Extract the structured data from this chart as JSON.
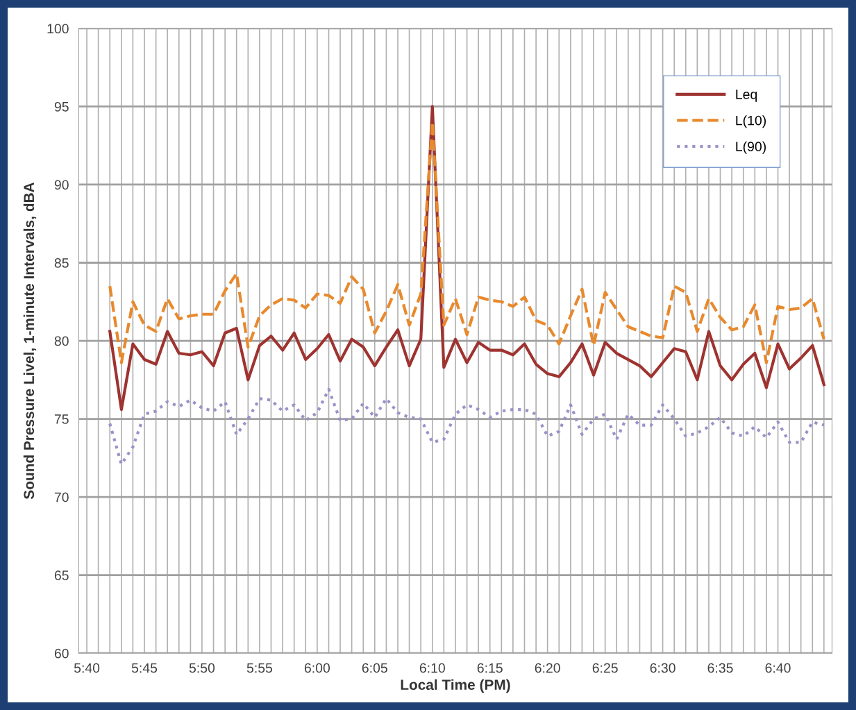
{
  "chart_data": {
    "type": "line",
    "xlabel": "Local Time (PM)",
    "ylabel": "Sound Pressure Livel, 1-minute Intervals, dBA",
    "x": [
      5.7,
      5.7167,
      5.7333,
      5.75,
      5.7667,
      5.7833,
      5.8,
      5.8167,
      5.8333,
      5.85,
      5.8667,
      5.8833,
      5.9,
      5.9167,
      5.9333,
      5.95,
      5.9667,
      5.9833,
      6.0,
      6.0167,
      6.0333,
      6.05,
      6.0667,
      6.0833,
      6.1,
      6.1167,
      6.1333,
      6.15,
      6.1667,
      6.1833,
      6.2,
      6.2167,
      6.2333,
      6.25,
      6.2667,
      6.2833,
      6.3,
      6.3167,
      6.3333,
      6.35,
      6.3667,
      6.3833,
      6.4,
      6.4167,
      6.4333,
      6.45,
      6.4667,
      6.4833,
      6.5,
      6.5167,
      6.5333,
      6.55,
      6.5667,
      6.5833,
      6.6,
      6.6167,
      6.6333,
      6.65,
      6.6667,
      6.6833,
      6.7,
      6.7167,
      6.7333
    ],
    "series": [
      {
        "name": "Leq",
        "color": "#9e3330",
        "line_style": "solid",
        "values": [
          80.6,
          75.6,
          79.8,
          78.8,
          78.5,
          80.6,
          79.2,
          79.1,
          79.3,
          78.4,
          80.5,
          80.8,
          77.5,
          79.7,
          80.3,
          79.4,
          80.5,
          78.8,
          79.5,
          80.4,
          78.7,
          80.1,
          79.6,
          78.4,
          79.6,
          80.7,
          78.4,
          80.1,
          95.0,
          78.3,
          80.1,
          78.6,
          79.9,
          79.4,
          79.4,
          79.1,
          79.8,
          78.5,
          77.9,
          77.7,
          78.6,
          79.8,
          77.8,
          79.9,
          79.2,
          78.8,
          78.4,
          77.7,
          78.6,
          79.5,
          79.3,
          77.5,
          80.6,
          78.4,
          77.5,
          78.5,
          79.2,
          77.0,
          79.8,
          78.2,
          78.9,
          79.7,
          77.2
        ]
      },
      {
        "name": "L(10)",
        "color": "#e8892d",
        "line_style": "dashed",
        "values": [
          83.5,
          78.6,
          82.5,
          81.0,
          80.6,
          82.7,
          81.4,
          81.6,
          81.7,
          81.7,
          83.2,
          84.3,
          79.6,
          81.6,
          82.3,
          82.7,
          82.6,
          82.1,
          83.0,
          82.9,
          82.4,
          84.1,
          83.3,
          80.5,
          81.9,
          83.6,
          81.0,
          83.0,
          94.0,
          81.0,
          82.7,
          80.4,
          82.8,
          82.6,
          82.5,
          82.2,
          82.8,
          81.3,
          81.0,
          79.8,
          81.6,
          83.3,
          79.7,
          83.1,
          82.0,
          80.9,
          80.6,
          80.3,
          80.2,
          83.5,
          83.1,
          80.6,
          82.7,
          81.5,
          80.7,
          80.9,
          82.3,
          78.6,
          82.2,
          82.0,
          82.1,
          82.7,
          80.1
        ]
      },
      {
        "name": "L(90)",
        "color": "#9a92c8",
        "line_style": "dotted",
        "values": [
          74.7,
          72.1,
          73.2,
          75.3,
          75.5,
          76.1,
          75.8,
          76.2,
          75.7,
          75.5,
          76.1,
          74.0,
          75.0,
          76.3,
          76.2,
          75.5,
          75.9,
          74.9,
          75.4,
          76.9,
          74.9,
          75.0,
          76.0,
          75.1,
          76.3,
          75.4,
          75.1,
          75.0,
          73.5,
          73.7,
          75.3,
          75.9,
          75.6,
          75.1,
          75.5,
          75.6,
          75.6,
          75.3,
          73.9,
          74.2,
          75.9,
          74.0,
          75.0,
          75.3,
          73.7,
          75.3,
          74.6,
          74.6,
          75.9,
          75.0,
          73.9,
          74.1,
          74.5,
          75.1,
          74.1,
          73.9,
          74.5,
          73.8,
          74.8,
          73.5,
          73.5,
          74.8,
          74.6
        ]
      }
    ],
    "xlim": [
      5.655,
      6.745
    ],
    "xticks": [
      {
        "value": 5.6667,
        "label": "5:40"
      },
      {
        "value": 5.6833,
        "label": null
      },
      {
        "value": 5.7,
        "label": null
      },
      {
        "value": 5.7167,
        "label": null
      },
      {
        "value": 5.7333,
        "label": null
      },
      {
        "value": 5.75,
        "label": "5:45"
      },
      {
        "value": 5.7667,
        "label": null
      },
      {
        "value": 5.7833,
        "label": null
      },
      {
        "value": 5.8,
        "label": null
      },
      {
        "value": 5.8167,
        "label": null
      },
      {
        "value": 5.8333,
        "label": "5:50"
      },
      {
        "value": 5.85,
        "label": null
      },
      {
        "value": 5.8667,
        "label": null
      },
      {
        "value": 5.8833,
        "label": null
      },
      {
        "value": 5.9,
        "label": null
      },
      {
        "value": 5.9167,
        "label": "5:55"
      },
      {
        "value": 5.9333,
        "label": null
      },
      {
        "value": 5.95,
        "label": null
      },
      {
        "value": 5.9667,
        "label": null
      },
      {
        "value": 5.9833,
        "label": null
      },
      {
        "value": 6.0,
        "label": "6:00"
      },
      {
        "value": 6.0167,
        "label": null
      },
      {
        "value": 6.0333,
        "label": null
      },
      {
        "value": 6.05,
        "label": null
      },
      {
        "value": 6.0667,
        "label": null
      },
      {
        "value": 6.0833,
        "label": "6:05"
      },
      {
        "value": 6.1,
        "label": null
      },
      {
        "value": 6.1167,
        "label": null
      },
      {
        "value": 6.1333,
        "label": null
      },
      {
        "value": 6.15,
        "label": null
      },
      {
        "value": 6.1667,
        "label": "6:10"
      },
      {
        "value": 6.1833,
        "label": null
      },
      {
        "value": 6.2,
        "label": null
      },
      {
        "value": 6.2167,
        "label": null
      },
      {
        "value": 6.2333,
        "label": null
      },
      {
        "value": 6.25,
        "label": "6:15"
      },
      {
        "value": 6.2667,
        "label": null
      },
      {
        "value": 6.2833,
        "label": null
      },
      {
        "value": 6.3,
        "label": null
      },
      {
        "value": 6.3167,
        "label": null
      },
      {
        "value": 6.3333,
        "label": "6:20"
      },
      {
        "value": 6.35,
        "label": null
      },
      {
        "value": 6.3667,
        "label": null
      },
      {
        "value": 6.3833,
        "label": null
      },
      {
        "value": 6.4,
        "label": null
      },
      {
        "value": 6.4167,
        "label": "6:25"
      },
      {
        "value": 6.4333,
        "label": null
      },
      {
        "value": 6.45,
        "label": null
      },
      {
        "value": 6.4667,
        "label": null
      },
      {
        "value": 6.4833,
        "label": null
      },
      {
        "value": 6.5,
        "label": "6:30"
      },
      {
        "value": 6.5167,
        "label": null
      },
      {
        "value": 6.5333,
        "label": null
      },
      {
        "value": 6.55,
        "label": null
      },
      {
        "value": 6.5667,
        "label": null
      },
      {
        "value": 6.5833,
        "label": "6:35"
      },
      {
        "value": 6.6,
        "label": null
      },
      {
        "value": 6.6167,
        "label": null
      },
      {
        "value": 6.6333,
        "label": null
      },
      {
        "value": 6.65,
        "label": null
      },
      {
        "value": 6.6667,
        "label": "6:40"
      },
      {
        "value": 6.6833,
        "label": null
      },
      {
        "value": 6.7,
        "label": null
      },
      {
        "value": 6.7167,
        "label": null
      },
      {
        "value": 6.7333,
        "label": null
      }
    ],
    "ylim": [
      60,
      100
    ],
    "yticks": [
      60,
      65,
      70,
      75,
      80,
      85,
      90,
      95,
      100
    ],
    "grid": true,
    "legend": "top right"
  }
}
